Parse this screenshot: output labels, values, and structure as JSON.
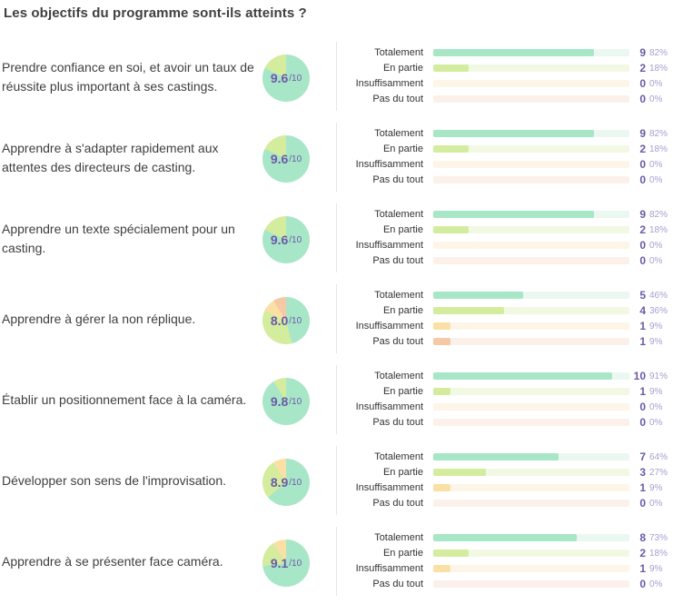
{
  "title": "Les objectifs du programme sont-ils atteints ?",
  "answer_labels": [
    "Totalement",
    "En partie",
    "Insuffisamment",
    "Pas du tout"
  ],
  "colors": {
    "totalement": "#a8e6c8",
    "en_partie": "#d4ec9e",
    "insuffisamment": "#fbe0a6",
    "pas_du_tout": "#f5c8a6",
    "track_totalement": "#eaf8f1",
    "track_en_partie": "#f1f9e3",
    "track_insuffisamment": "#fdf6e8",
    "track_pas_du_tout": "#fcf1ea",
    "score": "#6a5aa8"
  },
  "questions": [
    {
      "text": "Prendre confiance en soi, et avoir un taux de réussite plus important à ses castings.",
      "score": "9.6",
      "score_den": "/10",
      "answers": [
        {
          "count": "9",
          "pct": "82%",
          "value": 82
        },
        {
          "count": "2",
          "pct": "18%",
          "value": 18
        },
        {
          "count": "0",
          "pct": "0%",
          "value": 0
        },
        {
          "count": "0",
          "pct": "0%",
          "value": 0
        }
      ]
    },
    {
      "text": "Apprendre à s'adapter rapidement aux attentes des directeurs de casting.",
      "score": "9.6",
      "score_den": "/10",
      "answers": [
        {
          "count": "9",
          "pct": "82%",
          "value": 82
        },
        {
          "count": "2",
          "pct": "18%",
          "value": 18
        },
        {
          "count": "0",
          "pct": "0%",
          "value": 0
        },
        {
          "count": "0",
          "pct": "0%",
          "value": 0
        }
      ]
    },
    {
      "text": "Apprendre un texte spécialement pour un casting.",
      "score": "9.6",
      "score_den": "/10",
      "answers": [
        {
          "count": "9",
          "pct": "82%",
          "value": 82
        },
        {
          "count": "2",
          "pct": "18%",
          "value": 18
        },
        {
          "count": "0",
          "pct": "0%",
          "value": 0
        },
        {
          "count": "0",
          "pct": "0%",
          "value": 0
        }
      ]
    },
    {
      "text": "Apprendre à gérer la non réplique.",
      "score": "8.0",
      "score_den": "/10",
      "answers": [
        {
          "count": "5",
          "pct": "46%",
          "value": 46
        },
        {
          "count": "4",
          "pct": "36%",
          "value": 36
        },
        {
          "count": "1",
          "pct": "9%",
          "value": 9
        },
        {
          "count": "1",
          "pct": "9%",
          "value": 9
        }
      ]
    },
    {
      "text": "Établir un positionnement face à la caméra.",
      "score": "9.8",
      "score_den": "/10",
      "answers": [
        {
          "count": "10",
          "pct": "91%",
          "value": 91
        },
        {
          "count": "1",
          "pct": "9%",
          "value": 9
        },
        {
          "count": "0",
          "pct": "0%",
          "value": 0
        },
        {
          "count": "0",
          "pct": "0%",
          "value": 0
        }
      ]
    },
    {
      "text": "Développer son sens de l'improvisation.",
      "score": "8.9",
      "score_den": "/10",
      "answers": [
        {
          "count": "7",
          "pct": "64%",
          "value": 64
        },
        {
          "count": "3",
          "pct": "27%",
          "value": 27
        },
        {
          "count": "1",
          "pct": "9%",
          "value": 9
        },
        {
          "count": "0",
          "pct": "0%",
          "value": 0
        }
      ]
    },
    {
      "text": "Apprendre à se présenter face caméra.",
      "score": "9.1",
      "score_den": "/10",
      "answers": [
        {
          "count": "8",
          "pct": "73%",
          "value": 73
        },
        {
          "count": "2",
          "pct": "18%",
          "value": 18
        },
        {
          "count": "1",
          "pct": "9%",
          "value": 9
        },
        {
          "count": "0",
          "pct": "0%",
          "value": 0
        }
      ]
    }
  ]
}
